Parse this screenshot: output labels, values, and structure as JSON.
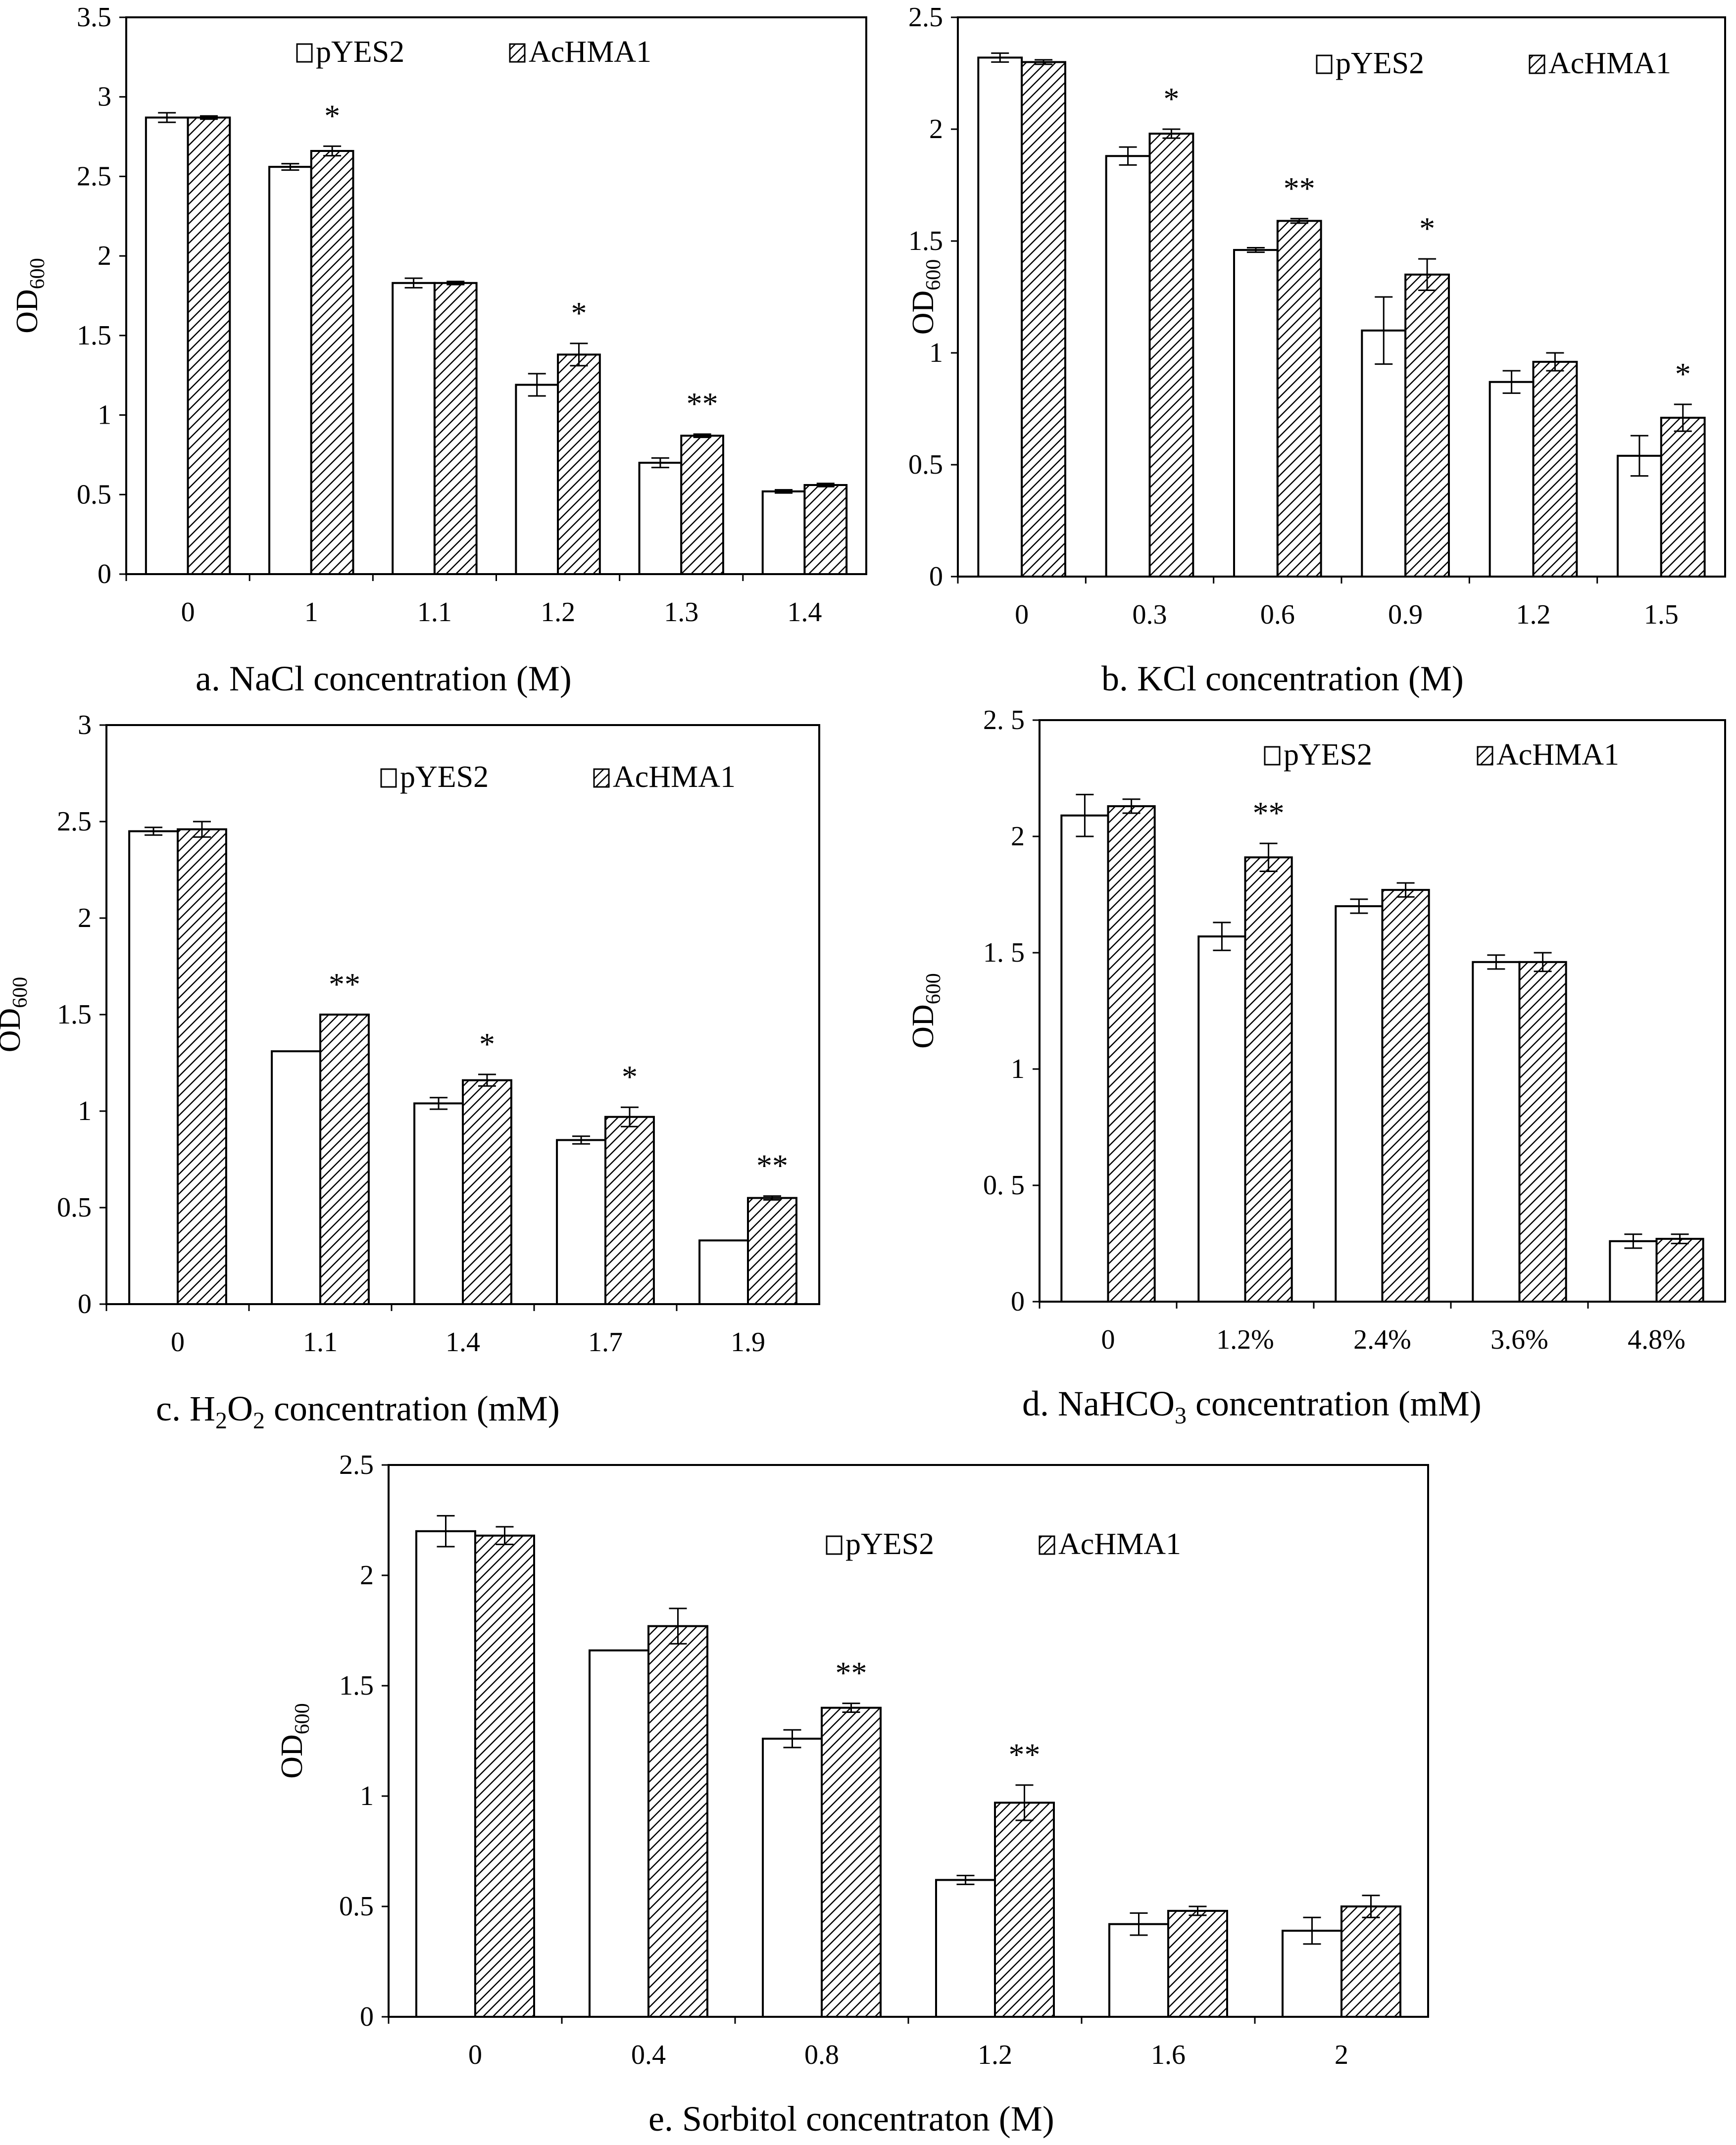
{
  "legend": {
    "series1": "pYES2",
    "series2": "AcHMA1"
  },
  "chart_data": [
    {
      "id": "a",
      "type": "bar",
      "caption": "a. NaCl concentration (M)",
      "ylabel": "OD",
      "ylabel_sub": "600",
      "ylim": [
        0,
        3.5
      ],
      "yticks": [
        "0",
        "0.5",
        "1",
        "1.5",
        "2",
        "2.5",
        "3",
        "3.5"
      ],
      "categories": [
        "0",
        "1",
        "1.1",
        "1.2",
        "1.3",
        "1.4"
      ],
      "series": [
        {
          "name": "pYES2",
          "values": [
            2.87,
            2.56,
            1.83,
            1.19,
            0.7,
            0.52
          ],
          "errors": [
            0.03,
            0.02,
            0.03,
            0.07,
            0.03,
            0.01
          ]
        },
        {
          "name": "AcHMA1",
          "values": [
            2.87,
            2.66,
            1.83,
            1.38,
            0.87,
            0.56
          ],
          "errors": [
            0.01,
            0.03,
            0.01,
            0.07,
            0.01,
            0.01
          ]
        }
      ],
      "significance": [
        "",
        "*",
        "",
        "*",
        "**",
        ""
      ]
    },
    {
      "id": "b",
      "type": "bar",
      "caption": "b. KCl concentration (M)",
      "ylabel": "OD",
      "ylabel_sub": "600",
      "ylim": [
        0,
        2.5
      ],
      "yticks": [
        "0",
        "0.5",
        "1",
        "1.5",
        "2",
        "2.5"
      ],
      "categories": [
        "0",
        "0.3",
        "0.6",
        "0.9",
        "1.2",
        "1.5"
      ],
      "series": [
        {
          "name": "pYES2",
          "values": [
            2.32,
            1.88,
            1.46,
            1.1,
            0.87,
            0.54
          ],
          "errors": [
            0.02,
            0.04,
            0.01,
            0.15,
            0.05,
            0.09
          ]
        },
        {
          "name": "AcHMA1",
          "values": [
            2.3,
            1.98,
            1.59,
            1.35,
            0.96,
            0.71
          ],
          "errors": [
            0.01,
            0.02,
            0.01,
            0.07,
            0.04,
            0.06
          ]
        }
      ],
      "significance": [
        "",
        "*",
        "**",
        "*",
        "",
        "*"
      ]
    },
    {
      "id": "c",
      "type": "bar",
      "caption": "c. H",
      "caption_sub1": "2",
      "caption_mid": "O",
      "caption_sub2": "2",
      "caption_end": " concentration (mM)",
      "ylabel": "OD",
      "ylabel_sub": "600",
      "ylim": [
        0,
        3
      ],
      "yticks": [
        "0",
        "0.5",
        "1",
        "1.5",
        "2",
        "2.5",
        "3"
      ],
      "categories": [
        "0",
        "1.1",
        "1.4",
        "1.7",
        "1.9"
      ],
      "series": [
        {
          "name": "pYES2",
          "values": [
            2.45,
            1.31,
            1.04,
            0.85,
            0.33
          ],
          "errors": [
            0.02,
            0.0,
            0.03,
            0.02,
            0.0
          ]
        },
        {
          "name": "AcHMA1",
          "values": [
            2.46,
            1.5,
            1.16,
            0.97,
            0.55
          ],
          "errors": [
            0.04,
            0.0,
            0.03,
            0.05,
            0.01
          ]
        }
      ],
      "significance": [
        "",
        "**",
        "*",
        "*",
        "**"
      ]
    },
    {
      "id": "d",
      "type": "bar",
      "caption": "d. NaHCO",
      "caption_sub1": "3",
      "caption_end": " concentration (mM)",
      "ylabel": "OD",
      "ylabel_sub": "600",
      "ylim": [
        0,
        2.5
      ],
      "yticks": [
        "0",
        "0. 5",
        "1",
        "1. 5",
        "2",
        "2. 5"
      ],
      "categories": [
        "0",
        "1.2%",
        "2.4%",
        "3.6%",
        "4.8%"
      ],
      "series": [
        {
          "name": "pYES2",
          "values": [
            2.09,
            1.57,
            1.7,
            1.46,
            0.26
          ],
          "errors": [
            0.09,
            0.06,
            0.03,
            0.03,
            0.03
          ]
        },
        {
          "name": "AcHMA1",
          "values": [
            2.13,
            1.91,
            1.77,
            1.46,
            0.27
          ],
          "errors": [
            0.03,
            0.06,
            0.03,
            0.04,
            0.02
          ]
        }
      ],
      "significance": [
        "",
        "**",
        "",
        "",
        ""
      ]
    },
    {
      "id": "e",
      "type": "bar",
      "caption": "e. Sorbitol concentraton (M)",
      "ylabel": "OD",
      "ylabel_sub": "600",
      "ylim": [
        0,
        2.5
      ],
      "yticks": [
        "0",
        "0.5",
        "1",
        "1.5",
        "2",
        "2.5"
      ],
      "categories": [
        "0",
        "0.4",
        "0.8",
        "1.2",
        "1.6",
        "2"
      ],
      "series": [
        {
          "name": "pYES2",
          "values": [
            2.2,
            1.66,
            1.26,
            0.62,
            0.42,
            0.39
          ],
          "errors": [
            0.07,
            0.0,
            0.04,
            0.02,
            0.05,
            0.06
          ]
        },
        {
          "name": "AcHMA1",
          "values": [
            2.18,
            1.77,
            1.4,
            0.97,
            0.48,
            0.5
          ],
          "errors": [
            0.04,
            0.08,
            0.02,
            0.08,
            0.02,
            0.05
          ]
        }
      ],
      "significance": [
        "",
        "",
        "**",
        "**",
        "",
        ""
      ]
    }
  ]
}
